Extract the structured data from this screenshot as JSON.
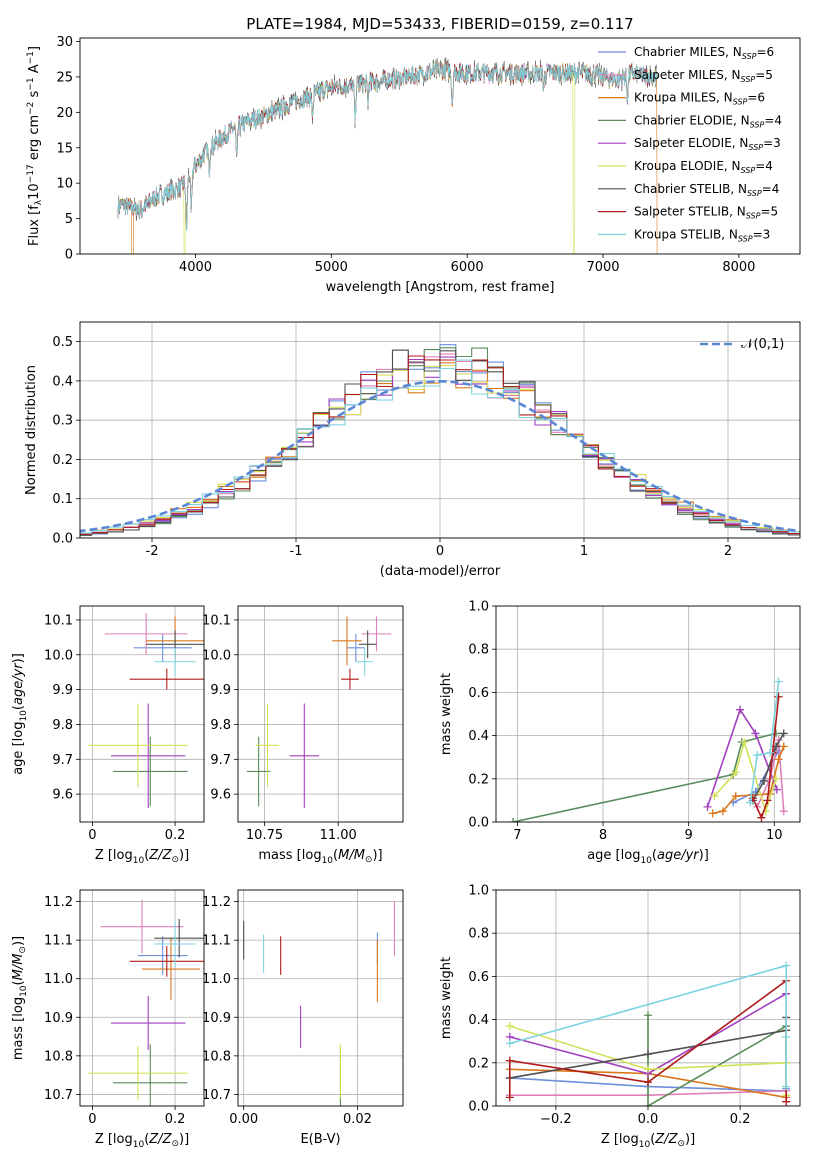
{
  "title": "PLATE=1984, MJD=53433, FIBERID=0159, z=0.117",
  "colors": {
    "Chabrier MILES": "#6d8fdc",
    "Salpeter MILES": "#e07fb8",
    "Kroupa MILES": "#d9781c",
    "Chabrier ELODIE": "#5a8c5a",
    "Salpeter ELODIE": "#a23fbe",
    "Kroupa ELODIE": "#d4e157",
    "Chabrier STELIB": "#505050",
    "Salpeter STELIB": "#b01c1c",
    "Kroupa STELIB": "#7ed3e0",
    "normal": "#5b86d6",
    "grid": "#b0b0b0"
  },
  "chart_data": [
    {
      "id": "spectrum",
      "type": "line",
      "xlabel": "wavelength [Angstrom, rest frame]",
      "ylabel": "Flux [f_λ10^-17 erg cm^-2 s^-1 A^-1]",
      "xlim": [
        3150,
        8450
      ],
      "ylim": [
        0,
        30.5
      ],
      "xticks": [
        4000,
        5000,
        6000,
        7000,
        8000
      ],
      "yticks": [
        0,
        5,
        10,
        15,
        20,
        25,
        30
      ],
      "grid": false,
      "legend_position": "top-right",
      "x_range_data": [
        3430,
        7400
      ],
      "continuum": [
        [
          3430,
          7.0
        ],
        [
          3600,
          6.3
        ],
        [
          3700,
          8.0
        ],
        [
          3900,
          9.5
        ],
        [
          4000,
          12.5
        ],
        [
          4100,
          15.0
        ],
        [
          4300,
          18.0
        ],
        [
          4500,
          19.5
        ],
        [
          4800,
          22.0
        ],
        [
          5000,
          23.5
        ],
        [
          5200,
          24.0
        ],
        [
          5500,
          24.8
        ],
        [
          5800,
          26.0
        ],
        [
          6000,
          25.5
        ],
        [
          6300,
          25.5
        ],
        [
          6600,
          25.6
        ],
        [
          6900,
          25.5
        ],
        [
          7100,
          24.5
        ],
        [
          7200,
          25.5
        ],
        [
          7400,
          25.0
        ]
      ],
      "absorption_features": [
        [
          3934,
          7.0
        ],
        [
          3969,
          6.0
        ],
        [
          4101,
          3.0
        ],
        [
          4304,
          5.0
        ],
        [
          4861,
          3.0
        ],
        [
          5175,
          5.0
        ],
        [
          5270,
          2.5
        ],
        [
          5890,
          4.5
        ],
        [
          6563,
          2.0
        ],
        [
          7180,
          3.0
        ]
      ],
      "series": [
        {
          "name": "Chabrier MILES, N_SSP=6",
          "legend_main": "Chabrier MILES, N",
          "legend_sub": "SSP",
          "legend_end": "=6"
        },
        {
          "name": "Salpeter MILES, N_SSP=5",
          "legend_main": "Salpeter MILES, N",
          "legend_sub": "SSP",
          "legend_end": "=5"
        },
        {
          "name": "Kroupa MILES, N_SSP=6",
          "legend_main": "Kroupa MILES, N",
          "legend_sub": "SSP",
          "legend_end": "=6"
        },
        {
          "name": "Chabrier ELODIE, N_SSP=4",
          "legend_main": "Chabrier ELODIE, N",
          "legend_sub": "SSP",
          "legend_end": "=4"
        },
        {
          "name": "Salpeter ELODIE, N_SSP=3",
          "legend_main": "Salpeter ELODIE, N",
          "legend_sub": "SSP",
          "legend_end": "=3"
        },
        {
          "name": "Kroupa ELODIE, N_SSP=4",
          "legend_main": "Kroupa ELODIE, N",
          "legend_sub": "SSP",
          "legend_end": "=4"
        },
        {
          "name": "Chabrier STELIB, N_SSP=4",
          "legend_main": "Chabrier STELIB, N",
          "legend_sub": "SSP",
          "legend_end": "=4"
        },
        {
          "name": "Salpeter STELIB, N_SSP=5",
          "legend_main": "Salpeter STELIB, N",
          "legend_sub": "SSP",
          "legend_end": "=5"
        },
        {
          "name": "Kroupa STELIB, N_SSP=3",
          "legend_main": "Kroupa STELIB, N",
          "legend_sub": "SSP",
          "legend_end": "=3"
        }
      ],
      "dropouts": [
        {
          "series": "Kroupa MILES",
          "x_from": 3530,
          "x_to": 3545
        },
        {
          "series": "Kroupa ELODIE",
          "x_from": 3915,
          "x_to": 3925
        },
        {
          "series": "Kroupa ELODIE",
          "x_from": 6780,
          "x_to": 6790
        },
        {
          "series": "Kroupa MILES",
          "x_from": 7395,
          "x_to": 7400
        }
      ]
    },
    {
      "id": "residuals",
      "type": "bar",
      "xlabel": "(data-model)/error",
      "ylabel": "Normed distribution",
      "xlim": [
        -2.5,
        2.5
      ],
      "ylim": [
        0,
        0.55
      ],
      "xticks": [
        -2,
        -1,
        0,
        1,
        2
      ],
      "yticks": [
        0.0,
        0.1,
        0.2,
        0.3,
        0.4,
        0.5
      ],
      "grid": true,
      "legend_position": "top-right",
      "legend": "𝒩(0,1)",
      "bin_width": 0.11,
      "histogram": "step histograms of nine models, approximately normal with peak 0.45-0.53 near 0",
      "reference_curve": {
        "name": "N(0,1)",
        "mean": 0,
        "sigma": 1
      }
    },
    {
      "id": "age-vs-Z",
      "type": "scatter",
      "xlabel": "Z [log10(Z/Z⊙)]",
      "ylabel": "age [log10(age/yr)]",
      "xlim": [
        -0.03,
        0.27
      ],
      "ylim": [
        9.52,
        10.14
      ],
      "xticks": [
        0.0,
        0.2
      ],
      "yticks": [
        9.6,
        9.7,
        9.8,
        9.9,
        10.0,
        10.1
      ],
      "grid": true,
      "points": [
        {
          "model": "Chabrier MILES",
          "x": 0.17,
          "xerr": 0.07,
          "y": 10.02,
          "yerr": 0.04
        },
        {
          "model": "Salpeter MILES",
          "x": 0.13,
          "xerr": 0.1,
          "y": 10.06,
          "yerr": 0.06
        },
        {
          "model": "Kroupa MILES",
          "x": 0.2,
          "xerr": 0.07,
          "y": 10.04,
          "yerr": 0.07
        },
        {
          "model": "Chabrier ELODIE",
          "x": 0.14,
          "xerr": 0.09,
          "y": 9.665,
          "yerr": 0.1
        },
        {
          "model": "Salpeter ELODIE",
          "x": 0.135,
          "xerr": 0.09,
          "y": 9.71,
          "yerr": 0.15
        },
        {
          "model": "Kroupa ELODIE",
          "x": 0.11,
          "xerr": 0.12,
          "y": 9.74,
          "yerr": 0.12
        },
        {
          "model": "Chabrier STELIB",
          "x": 0.2,
          "xerr": 0.07,
          "y": 10.03,
          "yerr": 0.04
        },
        {
          "model": "Salpeter STELIB",
          "x": 0.18,
          "xerr": 0.09,
          "y": 9.93,
          "yerr": 0.03
        },
        {
          "model": "Kroupa STELIB",
          "x": 0.2,
          "xerr": 0.05,
          "y": 9.98,
          "yerr": 0.04
        }
      ]
    },
    {
      "id": "age-vs-mass",
      "type": "scatter",
      "xlabel": "mass [log10(M/M⊙)]",
      "xlim": [
        10.66,
        11.22
      ],
      "ylim": [
        9.52,
        10.14
      ],
      "xticks": [
        10.75,
        11.0
      ],
      "xtick_labels": [
        "10.75",
        "11.00"
      ],
      "yticks": [
        9.6,
        9.7,
        9.8,
        9.9,
        10.0,
        10.1
      ],
      "grid": true,
      "points": [
        {
          "model": "Chabrier MILES",
          "x": 11.06,
          "xerr": 0.03,
          "y": 10.02,
          "yerr": 0.04
        },
        {
          "model": "Salpeter MILES",
          "x": 11.13,
          "xerr": 0.05,
          "y": 10.06,
          "yerr": 0.05
        },
        {
          "model": "Kroupa MILES",
          "x": 11.03,
          "xerr": 0.05,
          "y": 10.04,
          "yerr": 0.07
        },
        {
          "model": "Chabrier ELODIE",
          "x": 10.73,
          "xerr": 0.04,
          "y": 9.665,
          "yerr": 0.1
        },
        {
          "model": "Salpeter ELODIE",
          "x": 10.885,
          "xerr": 0.05,
          "y": 9.71,
          "yerr": 0.15
        },
        {
          "model": "Kroupa ELODIE",
          "x": 10.76,
          "xerr": 0.04,
          "y": 9.74,
          "yerr": 0.12
        },
        {
          "model": "Chabrier STELIB",
          "x": 11.1,
          "xerr": 0.03,
          "y": 10.03,
          "yerr": 0.04
        },
        {
          "model": "Salpeter STELIB",
          "x": 11.04,
          "xerr": 0.03,
          "y": 9.93,
          "yerr": 0.03
        },
        {
          "model": "Kroupa STELIB",
          "x": 11.09,
          "xerr": 0.03,
          "y": 9.98,
          "yerr": 0.04
        }
      ]
    },
    {
      "id": "weight-vs-age",
      "type": "line",
      "xlabel": "age [log10(age/yr)]",
      "ylabel": "mass weight",
      "xlim": [
        6.75,
        10.3
      ],
      "ylim": [
        0,
        1.0
      ],
      "xticks": [
        7,
        8,
        9,
        10
      ],
      "yticks": [
        0.0,
        0.2,
        0.4,
        0.6,
        0.8,
        1.0
      ],
      "grid": true,
      "series": [
        {
          "model": "Chabrier MILES",
          "x": [
            9.52,
            9.78,
            10.05
          ],
          "y": [
            0.09,
            0.14,
            0.33
          ]
        },
        {
          "model": "Salpeter MILES",
          "x": [
            9.8,
            9.95,
            10.05,
            10.11
          ],
          "y": [
            0.07,
            0.2,
            0.38,
            0.05
          ]
        },
        {
          "model": "Kroupa MILES",
          "x": [
            9.28,
            9.4,
            9.55,
            9.95,
            10.05,
            10.11
          ],
          "y": [
            0.04,
            0.05,
            0.12,
            0.13,
            0.29,
            0.35
          ]
        },
        {
          "model": "Chabrier ELODIE",
          "x": [
            6.95,
            9.52,
            9.62,
            10.02
          ],
          "y": [
            0.0,
            0.22,
            0.37,
            0.41
          ]
        },
        {
          "model": "Salpeter ELODIE",
          "x": [
            9.22,
            9.6,
            9.78,
            10.03
          ],
          "y": [
            0.07,
            0.52,
            0.41,
            0.15
          ]
        },
        {
          "model": "Kroupa ELODIE",
          "x": [
            9.3,
            9.55,
            9.65,
            9.9,
            10.02
          ],
          "y": [
            0.12,
            0.23,
            0.37,
            0.05,
            0.2
          ]
        },
        {
          "model": "Chabrier STELIB",
          "x": [
            9.75,
            9.88,
            10.02,
            10.11
          ],
          "y": [
            0.1,
            0.19,
            0.35,
            0.41
          ]
        },
        {
          "model": "Salpeter STELIB",
          "x": [
            9.75,
            9.85,
            9.92,
            9.98,
            10.05
          ],
          "y": [
            0.11,
            0.02,
            0.1,
            0.32,
            0.58
          ]
        },
        {
          "model": "Kroupa STELIB",
          "x": [
            9.72,
            9.8,
            9.95,
            10.05
          ],
          "y": [
            0.09,
            0.31,
            0.32,
            0.65
          ]
        }
      ]
    },
    {
      "id": "mass-vs-Z",
      "type": "scatter",
      "xlabel": "Z [log10(Z/Z⊙)]",
      "ylabel": "mass [log10(M/M⊙)]",
      "xlim": [
        -0.03,
        0.27
      ],
      "ylim": [
        10.67,
        11.23
      ],
      "xticks": [
        0.0,
        0.2
      ],
      "yticks": [
        10.7,
        10.8,
        10.9,
        11.0,
        11.1,
        11.2
      ],
      "grid": true,
      "points": [
        {
          "model": "Chabrier MILES",
          "x": 0.17,
          "xerr": 0.06,
          "y": 11.06,
          "yerr": 0.05
        },
        {
          "model": "Salpeter MILES",
          "x": 0.12,
          "xerr": 0.1,
          "y": 11.135,
          "yerr": 0.07
        },
        {
          "model": "Kroupa MILES",
          "x": 0.19,
          "xerr": 0.07,
          "y": 11.025,
          "yerr": 0.08
        },
        {
          "model": "Chabrier ELODIE",
          "x": 0.14,
          "xerr": 0.09,
          "y": 10.73,
          "yerr": 0.1
        },
        {
          "model": "Salpeter ELODIE",
          "x": 0.135,
          "xerr": 0.09,
          "y": 10.885,
          "yerr": 0.07
        },
        {
          "model": "Kroupa ELODIE",
          "x": 0.11,
          "xerr": 0.12,
          "y": 10.755,
          "yerr": 0.07
        },
        {
          "model": "Chabrier STELIB",
          "x": 0.21,
          "xerr": 0.06,
          "y": 11.105,
          "yerr": 0.05
        },
        {
          "model": "Salpeter STELIB",
          "x": 0.18,
          "xerr": 0.09,
          "y": 11.045,
          "yerr": 0.04
        },
        {
          "model": "Kroupa STELIB",
          "x": 0.2,
          "xerr": 0.05,
          "y": 11.09,
          "yerr": 0.06
        }
      ]
    },
    {
      "id": "mass-vs-ebv",
      "type": "scatter",
      "xlabel": "E(B-V)",
      "xlim": [
        -0.001,
        0.028
      ],
      "ylim": [
        10.67,
        11.23
      ],
      "xticks": [
        0.0,
        0.02
      ],
      "xtick_labels": [
        "0.00",
        "0.02"
      ],
      "yticks": [
        10.7,
        10.8,
        10.9,
        11.0,
        11.1,
        11.2
      ],
      "grid": true,
      "points": [
        {
          "model": "Chabrier MILES",
          "x": 0.0235,
          "y": 11.08,
          "yerr": 0.04
        },
        {
          "model": "Salpeter MILES",
          "x": 0.0265,
          "y": 11.13,
          "yerr": 0.07
        },
        {
          "model": "Kroupa MILES",
          "x": 0.0235,
          "y": 11.02,
          "yerr": 0.08
        },
        {
          "model": "Chabrier ELODIE",
          "x": 0.017,
          "y": 10.74,
          "yerr": 0.08
        },
        {
          "model": "Salpeter ELODIE",
          "x": 0.01,
          "y": 10.875,
          "yerr": 0.055
        },
        {
          "model": "Kroupa ELODIE",
          "x": 0.017,
          "y": 10.76,
          "yerr": 0.07
        },
        {
          "model": "Chabrier STELIB",
          "x": 0.0,
          "y": 11.1,
          "yerr": 0.05
        },
        {
          "model": "Salpeter STELIB",
          "x": 0.0065,
          "y": 11.06,
          "yerr": 0.05
        },
        {
          "model": "Kroupa STELIB",
          "x": 0.0035,
          "y": 11.065,
          "yerr": 0.05
        }
      ]
    },
    {
      "id": "weight-vs-Z",
      "type": "line",
      "xlabel": "Z [log10(Z/Z⊙)]",
      "ylabel": "mass weight",
      "xlim": [
        -0.33,
        0.33
      ],
      "ylim": [
        0,
        1.0
      ],
      "xticks": [
        -0.2,
        0.0,
        0.2
      ],
      "xtick_labels": [
        "−0.2",
        "0.0",
        "0.2"
      ],
      "yticks": [
        0.0,
        0.2,
        0.4,
        0.6,
        0.8,
        1.0
      ],
      "grid": true,
      "series": [
        {
          "model": "Chabrier MILES",
          "x": [
            -0.3,
            0.0,
            0.3,
            0.3
          ],
          "y": [
            0.13,
            0.09,
            0.07,
            0.08
          ]
        },
        {
          "model": "Salpeter MILES",
          "x": [
            -0.3,
            0.0,
            0.3
          ],
          "y": [
            0.05,
            0.05,
            0.07
          ]
        },
        {
          "model": "Kroupa MILES",
          "x": [
            -0.3,
            0.0,
            0.3,
            0.3
          ],
          "y": [
            0.17,
            0.15,
            0.04,
            0.35
          ]
        },
        {
          "model": "Chabrier ELODIE",
          "x": [
            0.0,
            0.0,
            0.3,
            0.3
          ],
          "y": [
            0.42,
            0.0,
            0.37,
            0.2
          ]
        },
        {
          "model": "Salpeter ELODIE",
          "x": [
            -0.3,
            0.0,
            0.3
          ],
          "y": [
            0.32,
            0.15,
            0.52
          ]
        },
        {
          "model": "Kroupa ELODIE",
          "x": [
            -0.3,
            0.0,
            0.3,
            0.3
          ],
          "y": [
            0.37,
            0.17,
            0.2,
            0.05
          ]
        },
        {
          "model": "Chabrier STELIB",
          "x": [
            -0.3,
            0.0,
            0.3,
            0.3
          ],
          "y": [
            0.13,
            0.24,
            0.35,
            0.41
          ]
        },
        {
          "model": "Salpeter STELIB",
          "x": [
            -0.3,
            -0.3,
            0.0,
            0.3,
            0.3
          ],
          "y": [
            0.04,
            0.21,
            0.11,
            0.58,
            0.02
          ]
        },
        {
          "model": "Kroupa STELIB",
          "x": [
            -0.3,
            0.3,
            0.3,
            0.3
          ],
          "y": [
            0.29,
            0.65,
            0.32,
            0.09
          ]
        }
      ]
    }
  ]
}
